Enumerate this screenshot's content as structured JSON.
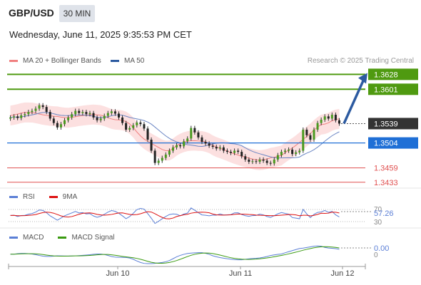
{
  "header": {
    "symbol": "GBP/USD",
    "timeframe": "30 MIN",
    "datetime": "Wednesday, June 11, 2025 9:35:53 PM CET"
  },
  "credit": "Research © 2025 Trading Central",
  "main_legend": [
    {
      "label": "MA 20 + Bollinger Bands",
      "color": "#f08080"
    },
    {
      "label": "MA 50",
      "color": "#2c5aa0"
    }
  ],
  "rsi_legend": [
    {
      "label": "RSI",
      "color": "#5b7fd6"
    },
    {
      "label": "9MA",
      "color": "#dd1111"
    }
  ],
  "macd_legend": [
    {
      "label": "MACD",
      "color": "#5b7fd6"
    },
    {
      "label": "MACD Signal",
      "color": "#3a9a10"
    }
  ],
  "chart_data": [
    {
      "type": "candlestick",
      "instrument": "GBP/USD",
      "interval": "30 MIN",
      "x_ticks": [
        "Jun 10",
        "Jun 11",
        "Jun 12"
      ],
      "ylim": [
        1.3425,
        1.364
      ],
      "price_levels": [
        {
          "value": 1.3628,
          "label": "1.3628",
          "style": "target",
          "color": "#4f9a10"
        },
        {
          "value": 1.3601,
          "label": "1.3601",
          "style": "resistance",
          "color": "#4f9a10"
        },
        {
          "value": 1.3539,
          "label": "1.3539",
          "style": "last-price",
          "color": "#333333"
        },
        {
          "value": 1.3504,
          "label": "1.3504",
          "style": "pivot",
          "color": "#1f6fd6"
        },
        {
          "value": 1.3459,
          "label": "1.3459",
          "style": "support",
          "color": "#e05050"
        },
        {
          "value": 1.3433,
          "label": "1.3433",
          "style": "support",
          "color": "#e05050"
        }
      ],
      "close_series": [
        1.355,
        1.3552,
        1.3549,
        1.3554,
        1.3556,
        1.356,
        1.3562,
        1.3566,
        1.3572,
        1.3569,
        1.356,
        1.3548,
        1.354,
        1.3532,
        1.3538,
        1.3545,
        1.355,
        1.3556,
        1.3562,
        1.3558,
        1.356,
        1.3556,
        1.3558,
        1.355,
        1.3545,
        1.3548,
        1.3553,
        1.3558,
        1.3561,
        1.3557,
        1.355,
        1.354,
        1.3528,
        1.3531,
        1.3536,
        1.3541,
        1.3538,
        1.353,
        1.351,
        1.349,
        1.3468,
        1.3472,
        1.3477,
        1.3483,
        1.349,
        1.3496,
        1.35,
        1.3498,
        1.3507,
        1.3512,
        1.3531,
        1.3523,
        1.3514,
        1.3506,
        1.3503,
        1.3499,
        1.3497,
        1.3494,
        1.3496,
        1.349,
        1.3488,
        1.3486,
        1.349,
        1.3488,
        1.348,
        1.3474,
        1.347,
        1.3471,
        1.347,
        1.3474,
        1.3472,
        1.3468,
        1.3467,
        1.3474,
        1.3482,
        1.3488,
        1.349,
        1.3492,
        1.3484,
        1.3487,
        1.349,
        1.3528,
        1.3518,
        1.351,
        1.3528,
        1.354,
        1.3546,
        1.3552,
        1.3548,
        1.3555,
        1.3545,
        1.3539
      ],
      "bollinger_band": {
        "upper_around": 1.3575,
        "lower_around": 1.3455
      },
      "forecast_arrow": {
        "from": 1.3539,
        "to": 1.3628
      }
    },
    {
      "type": "line",
      "name": "RSI",
      "levels": [
        70,
        30
      ],
      "level_labels": [
        "70",
        "30"
      ],
      "last_value": 57.26,
      "last_label": "57.26",
      "series": [
        {
          "name": "RSI",
          "color": "#5b7fd6"
        },
        {
          "name": "9MA",
          "color": "#dd1111"
        }
      ]
    },
    {
      "type": "line",
      "name": "MACD",
      "zero_label": "0",
      "last_value": 0.0,
      "last_label": "0.00",
      "series": [
        {
          "name": "MACD",
          "color": "#5b7fd6"
        },
        {
          "name": "MACD Signal",
          "color": "#3a9a10"
        }
      ]
    }
  ]
}
